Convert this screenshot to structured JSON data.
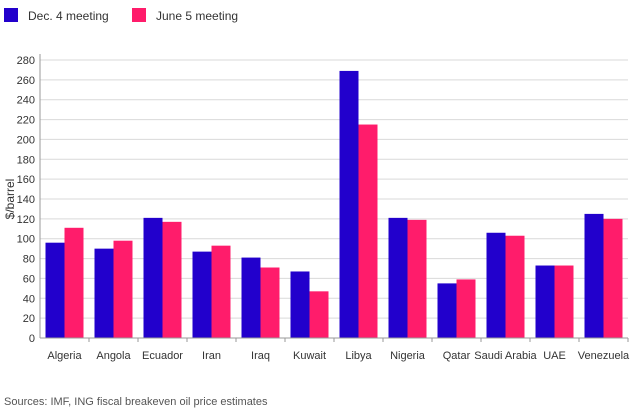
{
  "colors": {
    "dec": "#2200cc",
    "jun": "#ff1c6b",
    "grid": "#d9d9d9",
    "axis": "#999999"
  },
  "source": "Sources: IMF, ING fiscal breakeven oil price estimates",
  "chart_data": {
    "type": "bar",
    "ylabel": "$/barrel",
    "ylim": [
      0,
      280
    ],
    "yticks": [
      0,
      20,
      40,
      60,
      80,
      100,
      120,
      140,
      160,
      180,
      200,
      220,
      240,
      260,
      280
    ],
    "grid": "horizontal",
    "legend_position": "top-left",
    "categories": [
      "Algeria",
      "Angola",
      "Ecuador",
      "Iran",
      "Iraq",
      "Kuwait",
      "Libya",
      "Nigeria",
      "Qatar",
      "Saudi Arabia",
      "UAE",
      "Venezuela"
    ],
    "series": [
      {
        "name": "Dec. 4 meeting",
        "color": "#2200cc",
        "values": [
          96,
          90,
          121,
          87,
          81,
          67,
          269,
          121,
          55,
          106,
          73,
          125
        ]
      },
      {
        "name": "June 5 meeting",
        "color": "#ff1c6b",
        "values": [
          111,
          98,
          117,
          93,
          71,
          47,
          215,
          119,
          59,
          103,
          73,
          120
        ]
      }
    ]
  }
}
